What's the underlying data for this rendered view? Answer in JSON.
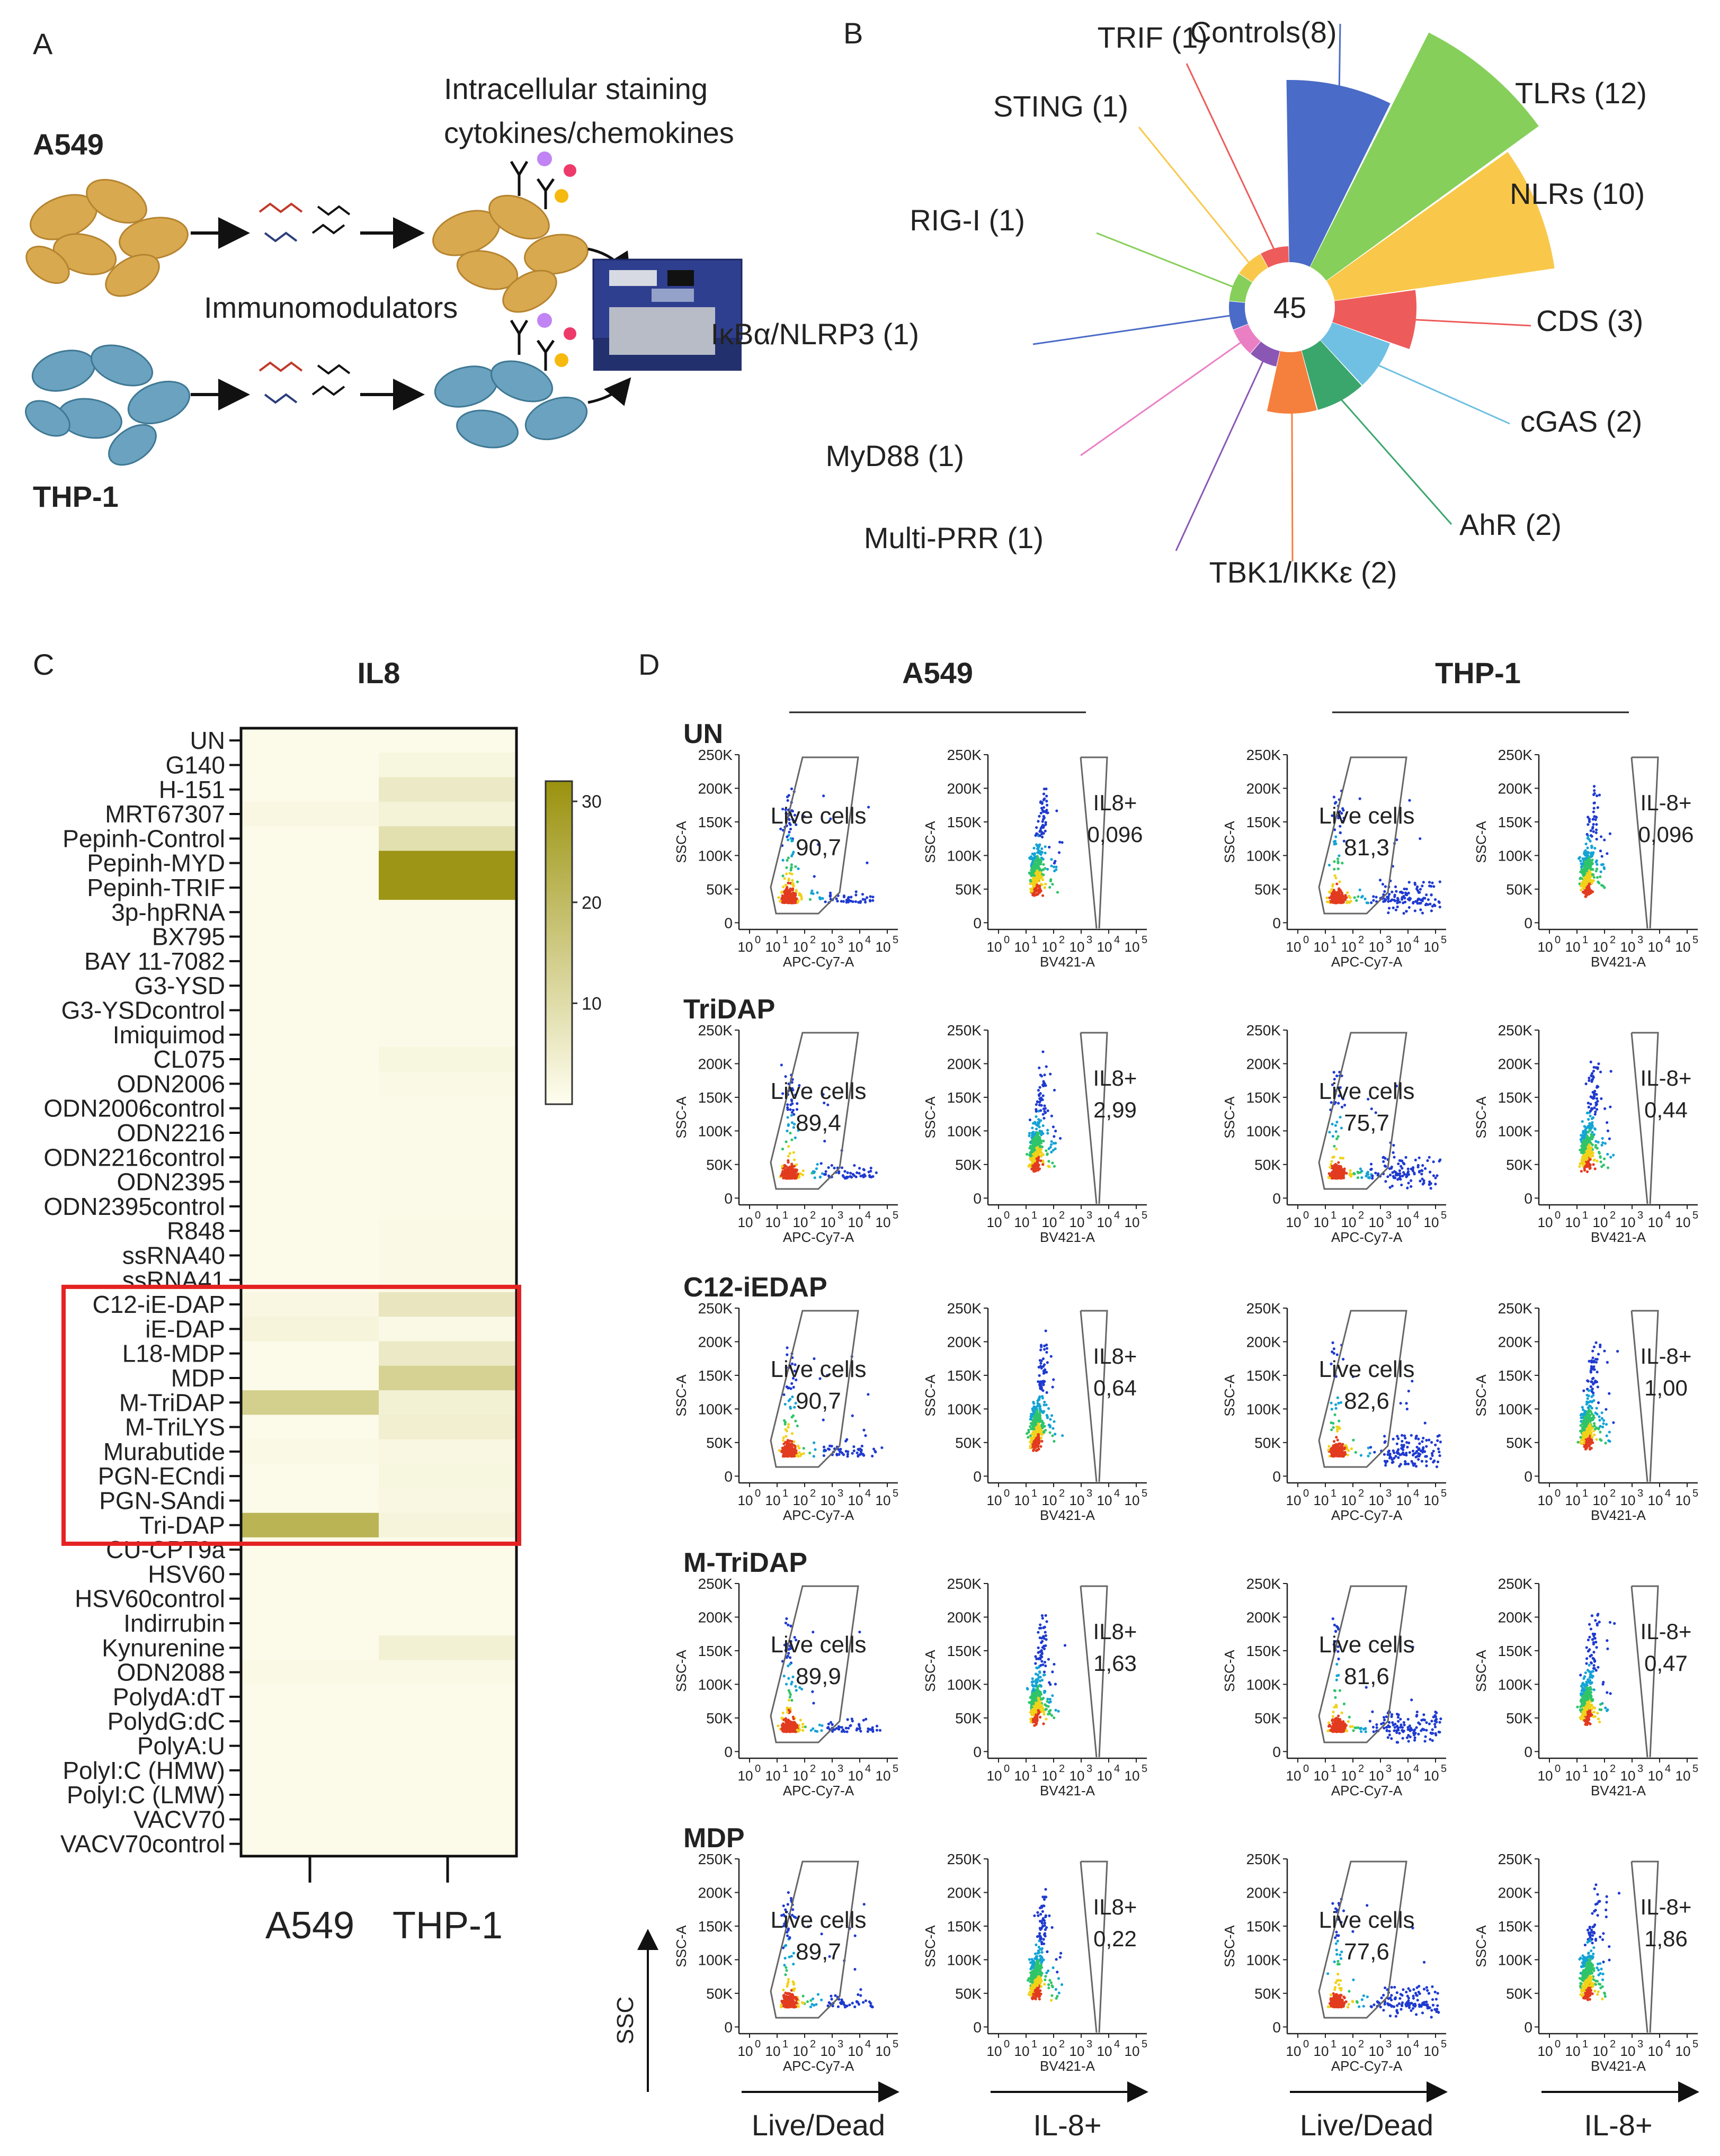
{
  "panel_a": {
    "label": "A",
    "cell_line_1": "A549",
    "cell_line_2": "THP-1",
    "treatment": "Immunomodulators",
    "readout_line1": "Intracellular staining",
    "readout_line2": "cytokines/chemokines"
  },
  "panel_b": {
    "label": "B",
    "center_total": "45",
    "categories": [
      {
        "label": "Controls(8)",
        "count": 8,
        "color": "#4a6bc7"
      },
      {
        "label": "TLRs (12)",
        "count": 12,
        "color": "#86cf5a"
      },
      {
        "label": "NLRs (10)",
        "count": 10,
        "color": "#f9c84a"
      },
      {
        "label": "CDS (3)",
        "count": 3,
        "color": "#ee5b5b"
      },
      {
        "label": "cGAS (2)",
        "count": 2,
        "color": "#6fc0e2"
      },
      {
        "label": "AhR (2)",
        "count": 2,
        "color": "#3aa66c"
      },
      {
        "label": "TBK1/IKKε (2)",
        "count": 2,
        "color": "#f57f3c"
      },
      {
        "label": "Multi-PRR (1)",
        "count": 1,
        "color": "#8a57b5"
      },
      {
        "label": "MyD88 (1)",
        "count": 1,
        "color": "#eb7fc4"
      },
      {
        "label": "IκBα/NLRP3 (1)",
        "count": 1,
        "color": "#4a6bc7"
      },
      {
        "label": "RIG-I (1)",
        "count": 1,
        "color": "#86cf5a"
      },
      {
        "label": "STING (1)",
        "count": 1,
        "color": "#f9c84a"
      },
      {
        "label": "TRIF (1)",
        "count": 1,
        "color": "#ee5b5b"
      }
    ]
  },
  "panel_c": {
    "label": "C",
    "title": "IL8",
    "columns": [
      "A549",
      "THP-1"
    ],
    "colorbar_ticks": [
      "30",
      "20",
      "10"
    ],
    "rows": [
      {
        "name": "UN",
        "values": [
          0.8,
          1.0
        ]
      },
      {
        "name": "G140",
        "values": [
          0.9,
          2.5
        ]
      },
      {
        "name": "H-151",
        "values": [
          1.0,
          6.0
        ]
      },
      {
        "name": "MRT67307",
        "values": [
          2.0,
          3.5
        ]
      },
      {
        "name": "Pepinh-Control",
        "values": [
          1.0,
          9.0
        ]
      },
      {
        "name": "Pepinh-MYD",
        "values": [
          1.0,
          31.0
        ]
      },
      {
        "name": "Pepinh-TRIF",
        "values": [
          1.0,
          31.0
        ]
      },
      {
        "name": "3p-hpRNA",
        "values": [
          0.8,
          1.2
        ]
      },
      {
        "name": "BX795",
        "values": [
          0.8,
          1.2
        ]
      },
      {
        "name": "BAY 11-7082",
        "values": [
          0.8,
          1.2
        ]
      },
      {
        "name": "G3-YSD",
        "values": [
          0.8,
          1.2
        ]
      },
      {
        "name": "G3-YSDcontrol",
        "values": [
          0.8,
          1.2
        ]
      },
      {
        "name": "Imiquimod",
        "values": [
          0.8,
          1.2
        ]
      },
      {
        "name": "CL075",
        "values": [
          1.0,
          2.5
        ]
      },
      {
        "name": "ODN2006",
        "values": [
          0.8,
          1.5
        ]
      },
      {
        "name": "ODN2006control",
        "values": [
          0.8,
          1.2
        ]
      },
      {
        "name": "ODN2216",
        "values": [
          0.8,
          1.2
        ]
      },
      {
        "name": "ODN2216control",
        "values": [
          0.8,
          1.2
        ]
      },
      {
        "name": "ODN2395",
        "values": [
          0.8,
          1.2
        ]
      },
      {
        "name": "ODN2395control",
        "values": [
          0.8,
          1.2
        ]
      },
      {
        "name": "R848",
        "values": [
          0.8,
          1.5
        ]
      },
      {
        "name": "ssRNA40",
        "values": [
          0.8,
          1.5
        ]
      },
      {
        "name": "ssRNA41",
        "values": [
          0.8,
          1.5
        ]
      },
      {
        "name": "C12-iE-DAP",
        "values": [
          2.0,
          7.0
        ]
      },
      {
        "name": "iE-DAP",
        "values": [
          3.0,
          1.5
        ]
      },
      {
        "name": "L18-MDP",
        "values": [
          1.0,
          6.0
        ]
      },
      {
        "name": "MDP",
        "values": [
          1.0,
          13.0
        ]
      },
      {
        "name": "M-TriDAP",
        "values": [
          14.0,
          4.0
        ]
      },
      {
        "name": "M-TriLYS",
        "values": [
          1.0,
          4.5
        ]
      },
      {
        "name": "Murabutide",
        "values": [
          1.5,
          2.0
        ]
      },
      {
        "name": "PGN-ECndi",
        "values": [
          1.0,
          2.5
        ]
      },
      {
        "name": "PGN-SAndi",
        "values": [
          1.0,
          2.0
        ]
      },
      {
        "name": "Tri-DAP",
        "values": [
          22.0,
          3.0
        ]
      },
      {
        "name": "CU-CPT9a",
        "values": [
          1.0,
          1.0
        ]
      },
      {
        "name": "HSV60",
        "values": [
          0.8,
          0.8
        ]
      },
      {
        "name": "HSV60control",
        "values": [
          0.8,
          0.8
        ]
      },
      {
        "name": "Indirrubin",
        "values": [
          0.8,
          1.0
        ]
      },
      {
        "name": "Kynurenine",
        "values": [
          0.8,
          4.0
        ]
      },
      {
        "name": "ODN2088",
        "values": [
          1.5,
          1.5
        ]
      },
      {
        "name": "PolydA:dT",
        "values": [
          1.0,
          1.0
        ]
      },
      {
        "name": "PolydG:dC",
        "values": [
          1.0,
          1.0
        ]
      },
      {
        "name": "PolyA:U",
        "values": [
          1.0,
          1.0
        ]
      },
      {
        "name": "PolyI:C (HMW)",
        "values": [
          1.0,
          1.0
        ]
      },
      {
        "name": "PolyI:C (LMW)",
        "values": [
          1.0,
          1.0
        ]
      },
      {
        "name": "VACV70",
        "values": [
          1.0,
          1.0
        ]
      },
      {
        "name": "VACV70control",
        "values": [
          1.0,
          1.0
        ]
      }
    ]
  },
  "panel_d": {
    "label": "D",
    "col_group_1": "A549",
    "col_group_2": "THP-1",
    "rows": [
      {
        "name": "UN",
        "a549_live": "90,7",
        "a549_il8": "0,096",
        "thp1_live": "81,3",
        "thp1_il8": "0,096"
      },
      {
        "name": "TriDAP",
        "a549_live": "89,4",
        "a549_il8": "2,99",
        "thp1_live": "75,7",
        "thp1_il8": "0,44"
      },
      {
        "name": "C12-iEDAP",
        "a549_live": "90,7",
        "a549_il8": "0,64",
        "thp1_live": "82,6",
        "thp1_il8": "1,00"
      },
      {
        "name": "M-TriDAP",
        "a549_live": "89,9",
        "a549_il8": "1,63",
        "thp1_live": "81,6",
        "thp1_il8": "0,47"
      },
      {
        "name": "MDP",
        "a549_live": "89,7",
        "a549_il8": "0,22",
        "thp1_live": "77,6",
        "thp1_il8": "1,86"
      }
    ],
    "gate_live": "Live cells",
    "gate_il8_a549": "IL8+",
    "gate_il8_thp1": "IL-8+",
    "y_ticks": [
      "250K",
      "200K",
      "150K",
      "100K",
      "50K",
      "0"
    ],
    "y_axis": "SSC-A",
    "x_axis_live": "APC-Cy7-A",
    "x_axis_il8": "BV421-A",
    "x_tick_base": "10",
    "x_tick_exps": [
      "0",
      "1",
      "2",
      "3",
      "4",
      "5"
    ],
    "bottom_arrows": [
      "Live/Dead",
      "IL-8+",
      "Live/Dead",
      "IL-8+"
    ],
    "ssc_arrow": "SSC"
  }
}
